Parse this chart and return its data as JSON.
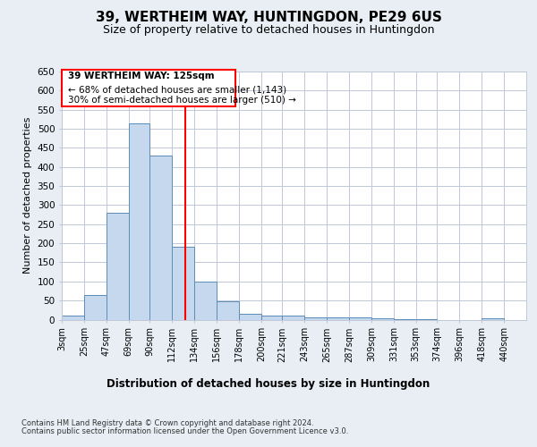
{
  "title1": "39, WERTHEIM WAY, HUNTINGDON, PE29 6US",
  "title2": "Size of property relative to detached houses in Huntingdon",
  "xlabel": "Distribution of detached houses by size in Huntingdon",
  "ylabel": "Number of detached properties",
  "footnote1": "Contains HM Land Registry data © Crown copyright and database right 2024.",
  "footnote2": "Contains public sector information licensed under the Open Government Licence v3.0.",
  "annotation_line1": "39 WERTHEIM WAY: 125sqm",
  "annotation_line2": "← 68% of detached houses are smaller (1,143)",
  "annotation_line3": "30% of semi-detached houses are larger (510) →",
  "bar_color": "#c5d8ed",
  "bar_edge_color": "#5b8db8",
  "ref_line_color": "red",
  "ref_line_x": 125,
  "categories": [
    "3sqm",
    "25sqm",
    "47sqm",
    "69sqm",
    "90sqm",
    "112sqm",
    "134sqm",
    "156sqm",
    "178sqm",
    "200sqm",
    "221sqm",
    "243sqm",
    "265sqm",
    "287sqm",
    "309sqm",
    "331sqm",
    "353sqm",
    "374sqm",
    "396sqm",
    "418sqm",
    "440sqm"
  ],
  "bin_edges": [
    3,
    25,
    47,
    69,
    90,
    112,
    134,
    156,
    178,
    200,
    221,
    243,
    265,
    287,
    309,
    331,
    353,
    374,
    396,
    418,
    440
  ],
  "values": [
    10,
    65,
    280,
    515,
    430,
    192,
    100,
    47,
    15,
    10,
    10,
    5,
    5,
    5,
    3,
    2,
    2,
    0,
    0,
    3,
    0
  ],
  "ylim": [
    0,
    650
  ],
  "yticks": [
    0,
    50,
    100,
    150,
    200,
    250,
    300,
    350,
    400,
    450,
    500,
    550,
    600,
    650
  ],
  "background_color": "#e8eef4",
  "plot_bg_color": "#ffffff",
  "grid_color": "#c0c8d8",
  "title1_fontsize": 11,
  "title2_fontsize": 9,
  "annotation_box_color": "white",
  "annotation_box_edge": "red"
}
